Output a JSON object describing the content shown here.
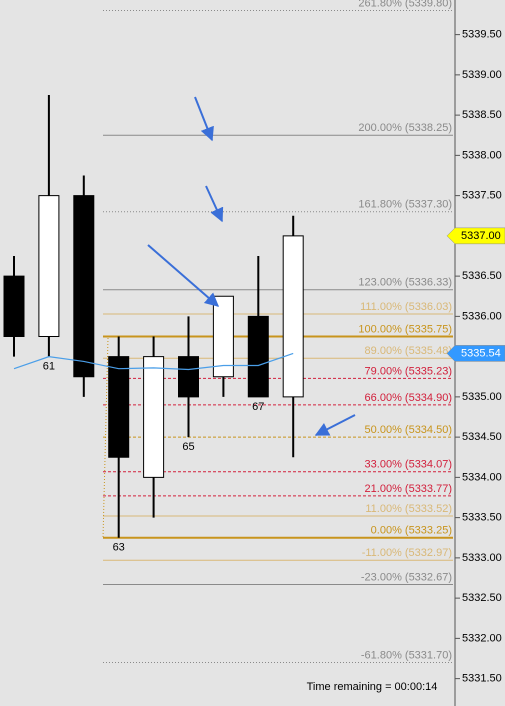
{
  "chart_data": {
    "type": "candlestick",
    "open": [
      5336.5,
      5335.75,
      5337.5,
      5335.5,
      5334.0,
      5335.5,
      5335.25,
      5336.0,
      5335.0
    ],
    "high": [
      5336.75,
      5338.75,
      5337.75,
      5335.75,
      5335.75,
      5336.0,
      5336.25,
      5336.75,
      5337.25
    ],
    "low": [
      5335.5,
      5335.5,
      5335.0,
      5333.25,
      5333.5,
      5334.5,
      5335.0,
      5335.0,
      5334.25
    ],
    "close": [
      5335.75,
      5337.5,
      5335.25,
      5334.25,
      5335.5,
      5335.0,
      5336.25,
      5335.0,
      5337.0
    ],
    "bar_labels": [
      null,
      "61",
      null,
      "63",
      null,
      "65",
      null,
      "67",
      null
    ],
    "up_color": "#ffffff",
    "down_color": "#000000",
    "moving_average": {
      "color": "#4a9ee8",
      "values": [
        5335.35,
        5335.5,
        5335.44,
        5335.35,
        5335.36,
        5335.34,
        5335.39,
        5335.39,
        5335.54
      ]
    },
    "ylim": [
      5331.16,
      5339.93
    ],
    "yticks": [
      {
        "value": 5331.5,
        "label": "5331.50"
      },
      {
        "value": 5332.0,
        "label": "5332.00"
      },
      {
        "value": 5332.5,
        "label": "5332.50"
      },
      {
        "value": 5333.0,
        "label": "5333.00"
      },
      {
        "value": 5333.5,
        "label": "5333.50"
      },
      {
        "value": 5334.0,
        "label": "5334.00"
      },
      {
        "value": 5334.5,
        "label": "5334.50"
      },
      {
        "value": 5335.0,
        "label": "5335.00"
      },
      {
        "value": 5335.5,
        "label": "5335.50"
      },
      {
        "value": 5336.0,
        "label": "5336.00"
      },
      {
        "value": 5336.5,
        "label": "5336.50"
      },
      {
        "value": 5337.0,
        "label": "5337.00"
      },
      {
        "value": 5337.5,
        "label": "5337.50"
      },
      {
        "value": 5338.0,
        "label": "5338.00"
      },
      {
        "value": 5338.5,
        "label": "5338.50"
      },
      {
        "value": 5339.0,
        "label": "5339.00"
      },
      {
        "value": 5339.5,
        "label": "5339.50"
      }
    ],
    "fib_levels": [
      {
        "value": 5339.8,
        "label": "261.80% (5339.80)",
        "color": "#8a8a8a",
        "style": "dotted"
      },
      {
        "value": 5338.25,
        "label": "200.00% (5338.25)",
        "color": "#8a8a8a",
        "style": "solid"
      },
      {
        "value": 5337.3,
        "label": "161.80% (5337.30)",
        "color": "#8a8a8a",
        "style": "dotted"
      },
      {
        "value": 5336.33,
        "label": "123.00% (5336.33)",
        "color": "#8a8a8a",
        "style": "solid"
      },
      {
        "value": 5336.03,
        "label": "111.00% (5336.03)",
        "color": "#d9b877",
        "style": "solid"
      },
      {
        "value": 5335.75,
        "label": "100.00% (5335.75)",
        "color": "#c8941c",
        "style": "thick"
      },
      {
        "value": 5335.48,
        "label": "89.00% (5335.48)",
        "color": "#d9b877",
        "style": "solid"
      },
      {
        "value": 5335.23,
        "label": "79.00% (5335.23)",
        "color": "#d2203c",
        "style": "dashed"
      },
      {
        "value": 5334.9,
        "label": "66.00% (5334.90)",
        "color": "#d2203c",
        "style": "dashed"
      },
      {
        "value": 5334.5,
        "label": "50.00% (5334.50)",
        "color": "#c8941c",
        "style": "dashed"
      },
      {
        "value": 5334.07,
        "label": "33.00% (5334.07)",
        "color": "#d2203c",
        "style": "dashed"
      },
      {
        "value": 5333.77,
        "label": "21.00% (5333.77)",
        "color": "#d2203c",
        "style": "dashed"
      },
      {
        "value": 5333.52,
        "label": "11.00% (5333.52)",
        "color": "#d9b877",
        "style": "solid"
      },
      {
        "value": 5333.25,
        "label": "0.00% (5333.25)",
        "color": "#c8941c",
        "style": "thick"
      },
      {
        "value": 5332.97,
        "label": "-11.00% (5332.97)",
        "color": "#d9b877",
        "style": "solid"
      },
      {
        "value": 5332.67,
        "label": "-23.00% (5332.67)",
        "color": "#8a8a8a",
        "style": "solid"
      },
      {
        "value": 5331.7,
        "label": "-61.80% (5331.70)",
        "color": "#8a8a8a",
        "style": "dotted"
      }
    ],
    "price_markers": [
      {
        "value": 5337.0,
        "label": "5337.00",
        "color": "#ffff00",
        "text_color": "#000000"
      },
      {
        "value": 5335.54,
        "label": "5335.54",
        "color": "#3399ff",
        "text_color": "#ffffff"
      }
    ],
    "status": "Time remaining = 00:00:14"
  }
}
